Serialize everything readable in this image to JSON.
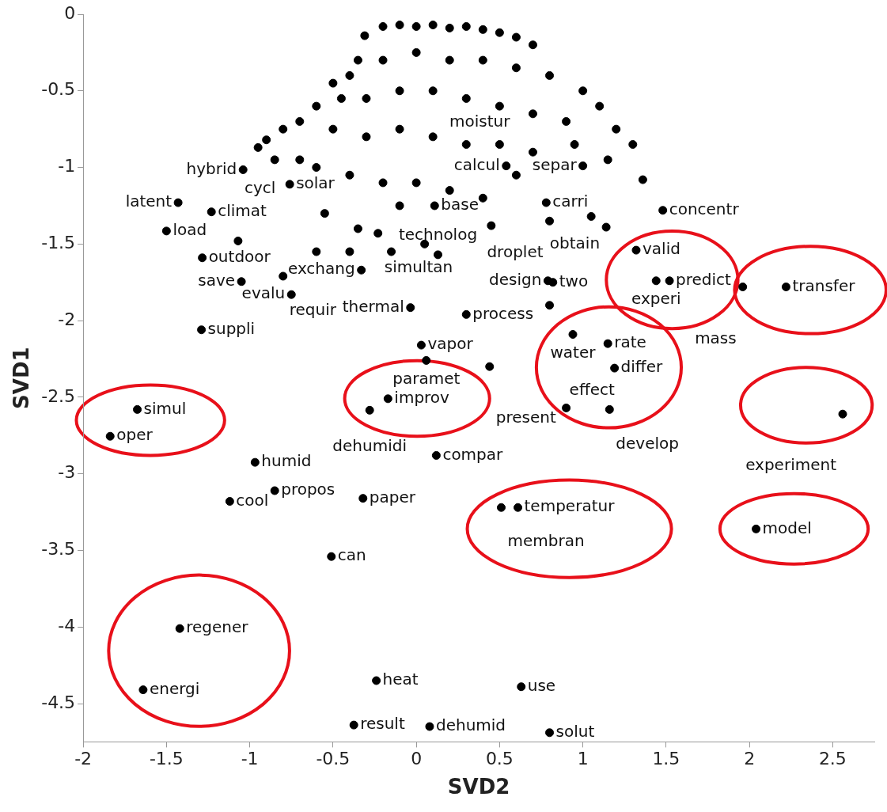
{
  "chart_data": {
    "type": "scatter",
    "xlabel": "SVD2",
    "ylabel": "SVD1",
    "xlim": [
      -2,
      2.75
    ],
    "ylim": [
      -4.75,
      0
    ],
    "xticks": [
      -2,
      -1.5,
      -1,
      -0.5,
      0,
      0.5,
      1,
      1.5,
      2,
      2.5
    ],
    "yticks": [
      0,
      -0.5,
      -1,
      -1.5,
      -2,
      -2.5,
      -3,
      -3.5,
      -4,
      -4.5
    ],
    "grid": false,
    "legend": false,
    "marker": "circle",
    "series": [
      {
        "color": "#000000",
        "x": [
          -1.675,
          -1.838,
          -0.968,
          -0.85,
          -1.12,
          -0.32,
          -0.51,
          -1.42,
          -1.64,
          -0.24,
          -0.375,
          0.08,
          0.63,
          0.8,
          0.12,
          -0.17,
          -0.28,
          0.03,
          0.06,
          0.44,
          0.51,
          0.61,
          2.04,
          2.56,
          0.9,
          1.16,
          0.94,
          1.15,
          1.19,
          -0.035,
          0.3,
          0.79,
          0.82,
          0.8,
          1.32,
          1.44,
          1.52,
          1.96,
          2.22,
          -1.29,
          -1.05,
          -1.285,
          -1.5,
          -1.43,
          -1.23,
          -1.07,
          -1.04,
          1.48,
          1.14,
          0.54,
          1.0,
          0.6,
          0.78,
          0.11,
          -0.23,
          -0.76,
          0.13,
          -0.33,
          -0.8,
          -0.75,
          -0.31,
          -0.2,
          -0.1,
          0.0,
          0.1,
          0.2,
          0.3,
          0.4,
          0.5,
          0.6,
          0.7,
          -0.35,
          -0.4,
          -0.5,
          -0.45,
          -0.6,
          -0.7,
          -0.8,
          -0.9,
          -0.95,
          -0.85,
          -0.7,
          -0.2,
          0,
          0.2,
          0.4,
          0.6,
          0.8,
          1.0,
          1.1,
          1.2,
          1.3,
          1.15,
          -0.3,
          -0.1,
          0.1,
          0.3,
          0.5,
          0.7,
          0.9,
          -0.5,
          -0.3,
          -0.1,
          0.1,
          0.3,
          0.5,
          0.7,
          0.95,
          -0.6,
          -0.4,
          -0.2,
          0.0,
          0.2,
          0.4,
          0.8,
          0.45,
          -0.55,
          -0.35,
          -0.1,
          1.05,
          1.36,
          -0.6,
          -0.4,
          -0.15,
          0.05
        ],
        "values": [
          -2.58,
          -2.755,
          -2.925,
          -3.11,
          -3.18,
          -3.16,
          -3.54,
          -4.01,
          -4.41,
          -4.35,
          -4.64,
          -4.65,
          -4.39,
          -4.69,
          -2.88,
          -2.51,
          -2.585,
          -2.16,
          -2.26,
          -2.3,
          -3.22,
          -3.22,
          -3.36,
          -2.61,
          -2.57,
          -2.58,
          -2.09,
          -2.15,
          -2.31,
          -1.915,
          -1.96,
          -1.74,
          -1.75,
          -1.9,
          -1.54,
          -1.74,
          -1.74,
          -1.78,
          -1.78,
          -2.06,
          -1.745,
          -1.59,
          -1.415,
          -1.23,
          -1.29,
          -1.48,
          -1.015,
          -1.28,
          -1.39,
          -0.99,
          -0.99,
          -1.05,
          -1.23,
          -1.25,
          -1.43,
          -1.11,
          -1.57,
          -1.67,
          -1.71,
          -1.83,
          -0.14,
          -0.08,
          -0.07,
          -0.08,
          -0.07,
          -0.09,
          -0.08,
          -0.1,
          -0.12,
          -0.15,
          -0.2,
          -0.3,
          -0.4,
          -0.45,
          -0.55,
          -0.6,
          -0.7,
          -0.75,
          -0.82,
          -0.87,
          -0.95,
          -0.95,
          -0.3,
          -0.25,
          -0.3,
          -0.3,
          -0.35,
          -0.4,
          -0.5,
          -0.6,
          -0.75,
          -0.85,
          -0.95,
          -0.55,
          -0.5,
          -0.5,
          -0.55,
          -0.6,
          -0.65,
          -0.7,
          -0.75,
          -0.8,
          -0.75,
          -0.8,
          -0.85,
          -0.85,
          -0.9,
          -0.85,
          -1.0,
          -1.05,
          -1.1,
          -1.1,
          -1.15,
          -1.2,
          -1.35,
          -1.38,
          -1.3,
          -1.4,
          -1.25,
          -1.32,
          -1.08,
          -1.55,
          -1.55,
          -1.55,
          -1.5
        ]
      }
    ],
    "annotations": [
      {
        "text": "simul",
        "x": -1.675,
        "y": -2.58
      },
      {
        "text": "oper",
        "x": -1.838,
        "y": -2.755
      },
      {
        "text": "humid",
        "x": -0.968,
        "y": -2.925
      },
      {
        "text": "propos",
        "x": -0.85,
        "y": -3.11
      },
      {
        "text": "cool",
        "x": -1.12,
        "y": -3.18
      },
      {
        "text": "paper",
        "x": -0.32,
        "y": -3.16
      },
      {
        "text": "can",
        "x": -0.51,
        "y": -3.54
      },
      {
        "text": "regener",
        "x": -1.42,
        "y": -4.01
      },
      {
        "text": "energi",
        "x": -1.64,
        "y": -4.41
      },
      {
        "text": "heat",
        "x": -0.24,
        "y": -4.35
      },
      {
        "text": "result",
        "x": -0.375,
        "y": -4.64
      },
      {
        "text": "dehumid",
        "x": 0.08,
        "y": -4.65
      },
      {
        "text": "use",
        "x": 0.63,
        "y": -4.39
      },
      {
        "text": "solut",
        "x": 0.8,
        "y": -4.69
      },
      {
        "text": "compar",
        "x": 0.12,
        "y": -2.88
      },
      {
        "text": "improv",
        "x": -0.17,
        "y": -2.51
      },
      {
        "text": "dehumidi",
        "x": -0.28,
        "y": -2.585
      },
      {
        "text": "vapor",
        "x": 0.03,
        "y": -2.16
      },
      {
        "text": "paramet",
        "x": 0.06,
        "y": -2.26
      },
      {
        "text": "present",
        "x": 0.44,
        "y": -2.3
      },
      {
        "text": "temperatur",
        "x": 0.61,
        "y": -3.22
      },
      {
        "text": "membran",
        "x": 0.51,
        "y": -3.22
      },
      {
        "text": "model",
        "x": 2.04,
        "y": -3.36
      },
      {
        "text": "experiment",
        "x": 2.56,
        "y": -2.61
      },
      {
        "text": "effect",
        "x": 0.9,
        "y": -2.57
      },
      {
        "text": "develop",
        "x": 1.16,
        "y": -2.58
      },
      {
        "text": "water",
        "x": 0.94,
        "y": -2.09
      },
      {
        "text": "rate",
        "x": 1.15,
        "y": -2.15
      },
      {
        "text": "differ",
        "x": 1.19,
        "y": -2.31
      },
      {
        "text": "thermal",
        "x": -0.035,
        "y": -1.915
      },
      {
        "text": "process",
        "x": 0.3,
        "y": -1.96
      },
      {
        "text": "design",
        "x": 0.79,
        "y": -1.74
      },
      {
        "text": "two",
        "x": 0.82,
        "y": -1.75
      },
      {
        "text": "droplet",
        "x": 0.8,
        "y": -1.9
      },
      {
        "text": "valid",
        "x": 1.32,
        "y": -1.54
      },
      {
        "text": "predict",
        "x": 1.52,
        "y": -1.74
      },
      {
        "text": "experi",
        "x": 1.44,
        "y": -1.74
      },
      {
        "text": "transfer",
        "x": 2.22,
        "y": -1.78
      },
      {
        "text": "mass",
        "x": 1.96,
        "y": -1.78
      },
      {
        "text": "suppli",
        "x": -1.29,
        "y": -2.06
      },
      {
        "text": "save",
        "x": -1.05,
        "y": -1.745
      },
      {
        "text": "outdoor",
        "x": -1.285,
        "y": -1.59
      },
      {
        "text": "load",
        "x": -1.5,
        "y": -1.415
      },
      {
        "text": "latent",
        "x": -1.43,
        "y": -1.23
      },
      {
        "text": "climat",
        "x": -1.23,
        "y": -1.29
      },
      {
        "text": "cycl",
        "x": -1.07,
        "y": -1.48
      },
      {
        "text": "hybrid",
        "x": -1.04,
        "y": -1.015
      },
      {
        "text": "concentr",
        "x": 1.48,
        "y": -1.28
      },
      {
        "text": "obtain",
        "x": 1.14,
        "y": -1.39
      },
      {
        "text": "calcul",
        "x": 0.54,
        "y": -0.99
      },
      {
        "text": "separ",
        "x": 1.0,
        "y": -0.99
      },
      {
        "text": "moistur",
        "x": 0.6,
        "y": -1.05
      },
      {
        "text": "carri",
        "x": 0.78,
        "y": -1.23
      },
      {
        "text": "base",
        "x": 0.11,
        "y": -1.25
      },
      {
        "text": "simultan",
        "x": -0.23,
        "y": -1.43
      },
      {
        "text": "solar",
        "x": -0.76,
        "y": -1.11
      },
      {
        "text": "technolog",
        "x": 0.13,
        "y": -1.57
      },
      {
        "text": "exchang",
        "x": -0.33,
        "y": -1.67
      },
      {
        "text": "requir",
        "x": -0.8,
        "y": -1.71
      },
      {
        "text": "evalu",
        "x": -0.75,
        "y": -1.83
      }
    ]
  }
}
